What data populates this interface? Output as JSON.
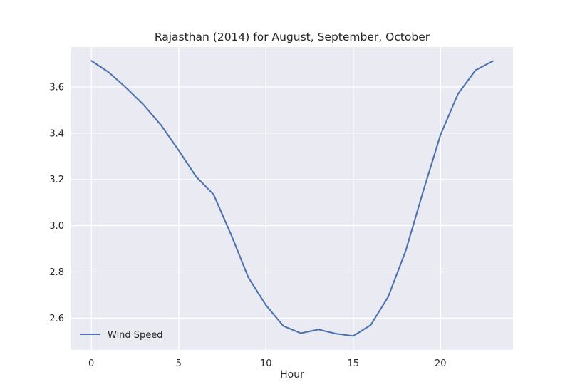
{
  "chart_data": {
    "type": "line",
    "title": "Rajasthan (2014) for August, September, October",
    "xlabel": "Hour",
    "ylabel": "",
    "x": [
      0,
      1,
      2,
      3,
      4,
      5,
      6,
      7,
      8,
      9,
      10,
      11,
      12,
      13,
      14,
      15,
      16,
      17,
      18,
      19,
      20,
      21,
      22,
      23
    ],
    "series": [
      {
        "name": "Wind Speed",
        "color": "#4c72b0",
        "values": [
          3.713,
          3.663,
          3.596,
          3.522,
          3.434,
          3.326,
          3.212,
          3.135,
          2.962,
          2.775,
          2.656,
          2.566,
          2.535,
          2.551,
          2.533,
          2.523,
          2.57,
          2.692,
          2.89,
          3.147,
          3.393,
          3.57,
          3.672,
          3.712
        ]
      }
    ],
    "xlim": [
      -1.15,
      24.15
    ],
    "ylim": [
      2.4625,
      3.7725
    ],
    "xticks": [
      0,
      5,
      10,
      15,
      20
    ],
    "yticks": [
      2.6,
      2.8,
      3.0,
      3.2,
      3.4,
      3.6
    ],
    "xtick_labels": [
      "0",
      "5",
      "10",
      "15",
      "20"
    ],
    "ytick_labels": [
      "2.6",
      "2.8",
      "3.0",
      "3.2",
      "3.4",
      "3.6"
    ],
    "grid": true,
    "background": "#eaeaf2",
    "grid_color": "#ffffff",
    "legend": "lower-left"
  }
}
